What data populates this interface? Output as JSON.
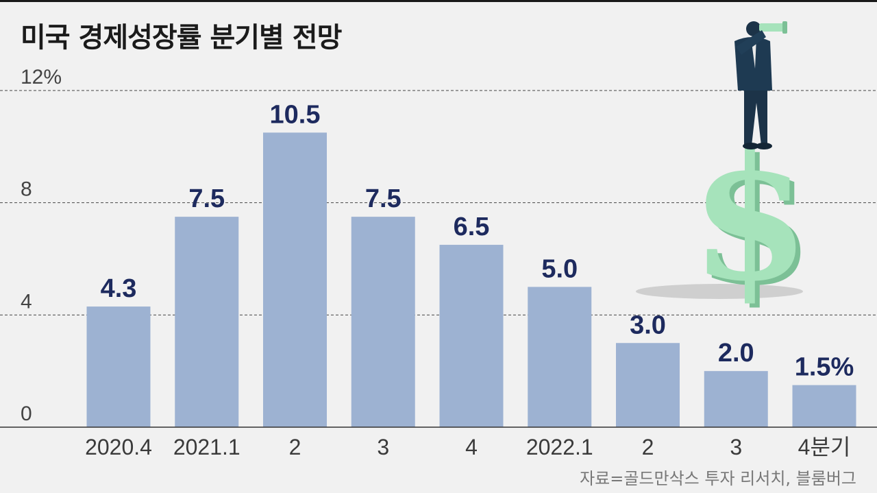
{
  "title": "미국 경제성장률 분기별 전망",
  "source": "자료=골드만삭스 투자 리서치, 블룸버그",
  "colors": {
    "bar": "#9db2d2",
    "data_label": "#1d2a5e",
    "dollar": "#a6e3bb",
    "dollar_shade": "#7cc096",
    "suit": "#1c3348"
  },
  "illustration": {
    "icon": "man-with-telescope-on-dollar-sign",
    "glyph": "$"
  },
  "chart_data": {
    "type": "bar",
    "categories": [
      "2020.4",
      "2021.1",
      "2",
      "3",
      "4",
      "2022.1",
      "2",
      "3",
      "4분기"
    ],
    "values": [
      4.3,
      7.5,
      10.5,
      7.5,
      6.5,
      5.0,
      3.0,
      2.0,
      1.5
    ],
    "value_labels": [
      "4.3",
      "7.5",
      "10.5",
      "7.5",
      "6.5",
      "5.0",
      "3.0",
      "2.0",
      "1.5%"
    ],
    "yticks": [
      0,
      4,
      8,
      12
    ],
    "ytick_labels": [
      "0",
      "4",
      "8",
      "12%"
    ],
    "ylim": [
      0,
      12
    ],
    "grid": true,
    "title": "미국 경제성장률 분기별 전망",
    "xlabel": "",
    "ylabel": ""
  }
}
